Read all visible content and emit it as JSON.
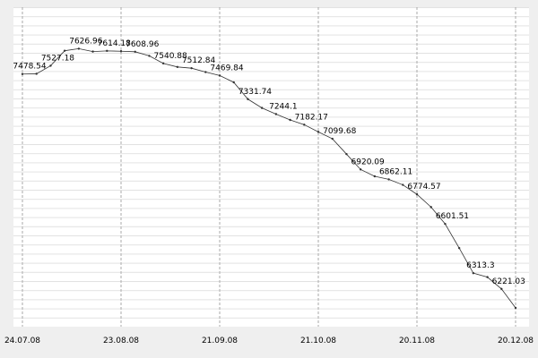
{
  "chart_data": {
    "type": "line",
    "categories": [
      "24.07.08",
      null,
      null,
      null,
      null,
      null,
      null,
      "23.08.08",
      null,
      null,
      null,
      null,
      null,
      null,
      "21.09.08",
      null,
      null,
      null,
      null,
      null,
      null,
      "21.10.08",
      null,
      null,
      null,
      null,
      null,
      null,
      "20.11.08",
      null,
      null,
      null,
      null,
      null,
      null,
      "20.12.08"
    ],
    "series": [
      {
        "color": "#333333",
        "values": [
          7478.54,
          7480,
          7527.18,
          7615,
          7626.96,
          7610,
          7614.18,
          7612,
          7608.96,
          7585,
          7540.88,
          7520,
          7512.84,
          7490,
          7469.84,
          7430,
          7331.74,
          7280,
          7244.1,
          7210,
          7182.17,
          7140,
          7099.68,
          7010,
          6920.09,
          6880,
          6862.11,
          6830,
          6774.57,
          6700,
          6601.51,
          6460,
          6313.3,
          6290,
          6221.03,
          6110
        ],
        "value_labels": [
          "7478.54",
          null,
          "7527.18",
          null,
          "7626.96",
          null,
          "7614.18",
          null,
          "7608.96",
          null,
          "7540.88",
          null,
          "7512.84",
          null,
          "7469.84",
          null,
          "7331.74",
          null,
          "7244.1",
          null,
          "7182.17",
          null,
          "7099.68",
          null,
          "6920.09",
          null,
          "6862.11",
          null,
          "6774.57",
          null,
          "6601.51",
          null,
          "6313.3",
          null,
          "6221.03",
          null
        ]
      }
    ],
    "ylim": [
      6000,
      7870
    ],
    "grid": true
  }
}
